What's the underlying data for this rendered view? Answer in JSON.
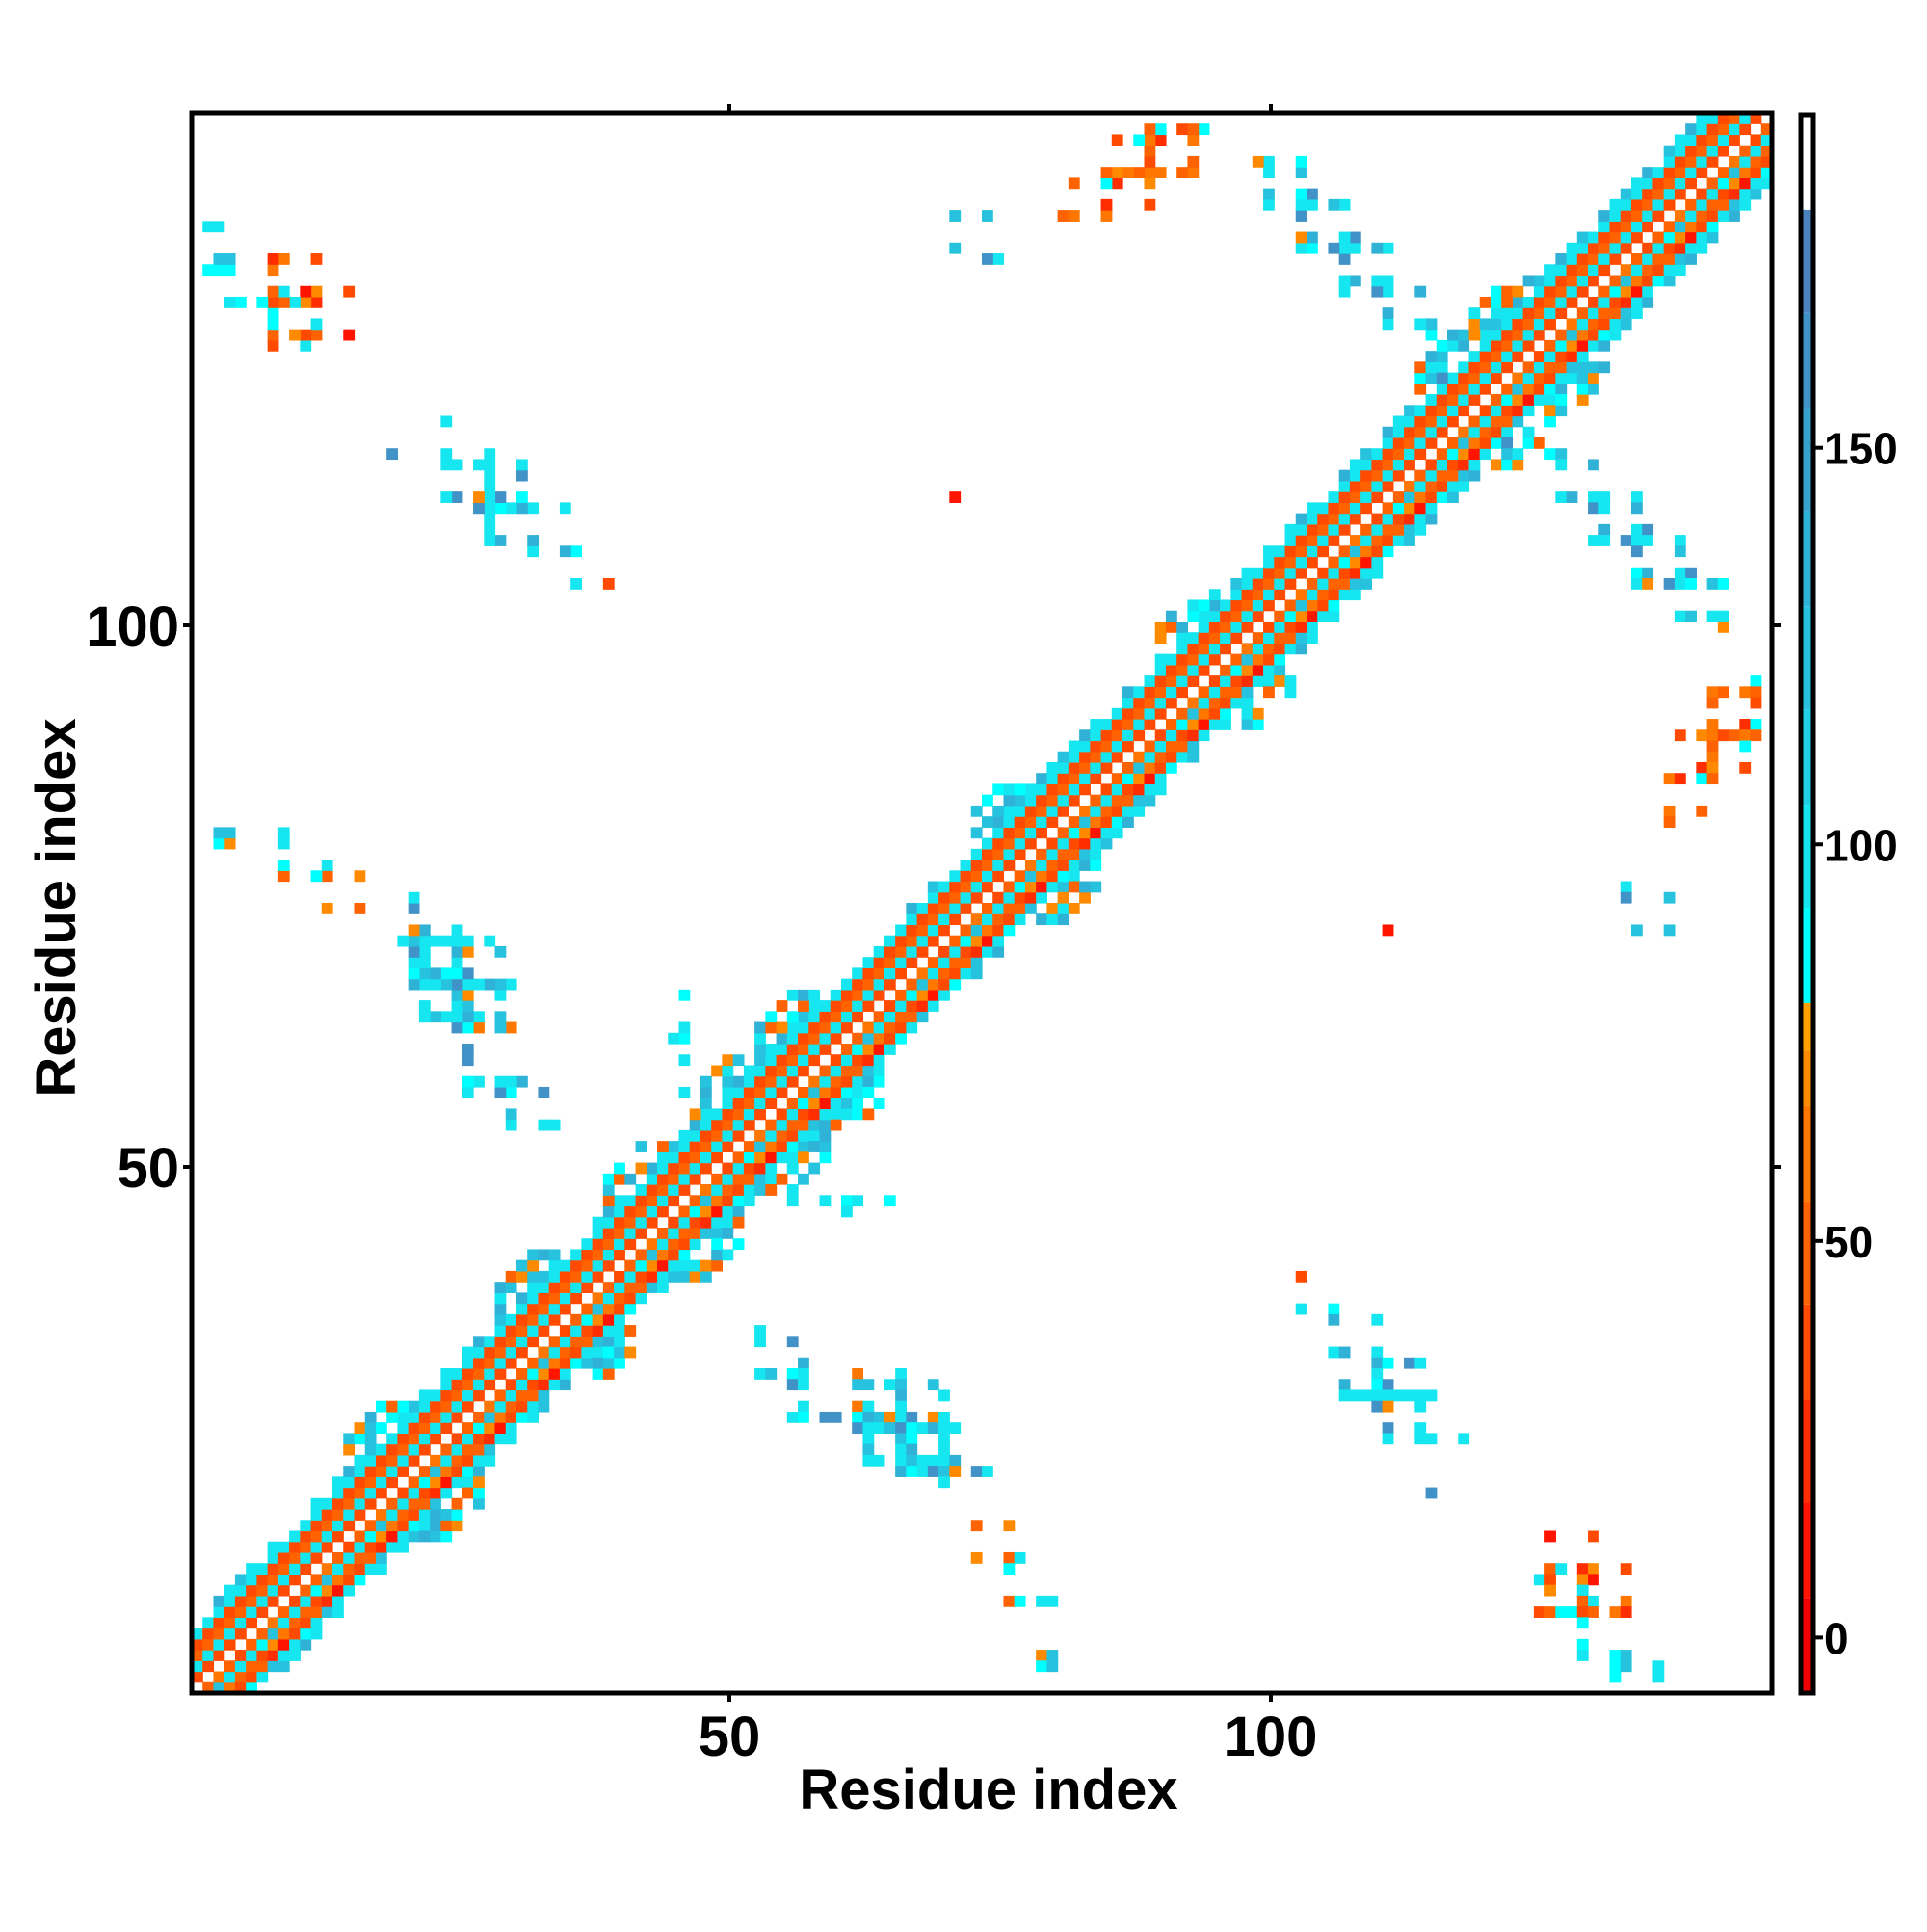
{
  "chart_data": {
    "type": "heatmap",
    "title": "",
    "xlabel": "Residue index",
    "ylabel": "Residue index",
    "n_residues": 146,
    "x_range": [
      0.5,
      146.5
    ],
    "y_range": [
      0.5,
      146.5
    ],
    "x_ticks": [
      50,
      100
    ],
    "y_ticks": [
      50,
      100
    ],
    "x_tick_labels": [
      "50",
      "100"
    ],
    "y_tick_labels": [
      "50",
      "100"
    ],
    "grid": false,
    "symmetric": true,
    "colorbar": {
      "position": "right",
      "range": [
        -7,
        192
      ],
      "ticks": [
        0,
        50,
        100,
        150
      ],
      "tick_labels": [
        "0",
        "50",
        "100",
        "150"
      ],
      "steps": [
        {
          "from": -7,
          "color": "#f00000"
        },
        {
          "from": 5,
          "color": "#ff1400"
        },
        {
          "from": 17,
          "color": "#ff2d00"
        },
        {
          "from": 30,
          "color": "#ff4a00"
        },
        {
          "from": 42,
          "color": "#ff6200"
        },
        {
          "from": 55,
          "color": "#ff7600"
        },
        {
          "from": 67,
          "color": "#ff8a00"
        },
        {
          "from": 74,
          "color": "#ffa200"
        },
        {
          "from": 80,
          "color": "#00ffff"
        },
        {
          "from": 92,
          "color": "#16e6f0"
        },
        {
          "from": 105,
          "color": "#1fd0e6"
        },
        {
          "from": 117,
          "color": "#27c2de"
        },
        {
          "from": 130,
          "color": "#30b2d6"
        },
        {
          "from": 142,
          "color": "#38a2ce"
        },
        {
          "from": 155,
          "color": "#4192c6"
        },
        {
          "from": 167,
          "color": "#4a82be"
        },
        {
          "from": 180,
          "color": "#ffffff"
        }
      ]
    },
    "band": {
      "max_offset": 6,
      "offset_values": [
        [],
        [
          45,
          35,
          60,
          45,
          50
        ],
        [
          100,
          88,
          100,
          120,
          100
        ],
        [
          45,
          60,
          35,
          45,
          72
        ],
        [
          20,
          35,
          5,
          45,
          30
        ],
        [
          100,
          120,
          88,
          100,
          100
        ],
        [
          100,
          140,
          100,
          120
        ]
      ],
      "junctions": [
        21,
        35,
        45,
        53,
        59,
        78,
        96,
        120,
        125
      ]
    },
    "contacts": [
      [
        73,
        16,
        45
      ],
      [
        76,
        16,
        72
      ],
      [
        73,
        13,
        72
      ],
      [
        76,
        13,
        45
      ],
      [
        77,
        13,
        100
      ],
      [
        76,
        12,
        88
      ],
      [
        76,
        9,
        45
      ],
      [
        77,
        9,
        88
      ],
      [
        79,
        9,
        100
      ],
      [
        80,
        9,
        100
      ],
      [
        79,
        4,
        72
      ],
      [
        80,
        4,
        120
      ],
      [
        79,
        3,
        88
      ],
      [
        80,
        3,
        120
      ],
      [
        126,
        15,
        5
      ],
      [
        130,
        15,
        35
      ],
      [
        126,
        12,
        45
      ],
      [
        127,
        12,
        100
      ],
      [
        129,
        12,
        20
      ],
      [
        130,
        12,
        72
      ],
      [
        133,
        12,
        35
      ],
      [
        125,
        11,
        100
      ],
      [
        126,
        11,
        35
      ],
      [
        129,
        11,
        72
      ],
      [
        130,
        11,
        5
      ],
      [
        126,
        10,
        72
      ],
      [
        129,
        10,
        100
      ],
      [
        129,
        9,
        45
      ],
      [
        130,
        9,
        100
      ],
      [
        133,
        9,
        60
      ],
      [
        125,
        8,
        35
      ],
      [
        126,
        8,
        45
      ],
      [
        127,
        8,
        88
      ],
      [
        128,
        8,
        88
      ],
      [
        129,
        8,
        35
      ],
      [
        130,
        8,
        45
      ],
      [
        132,
        8,
        60
      ],
      [
        133,
        8,
        20
      ],
      [
        129,
        7,
        88
      ],
      [
        129,
        5,
        88
      ],
      [
        129,
        4,
        100
      ],
      [
        132,
        4,
        88
      ],
      [
        133,
        4,
        120
      ],
      [
        132,
        3,
        88
      ],
      [
        133,
        3,
        120
      ],
      [
        136,
        3,
        100
      ],
      [
        132,
        2,
        88
      ],
      [
        136,
        2,
        100
      ],
      [
        103,
        39,
        35
      ],
      [
        103,
        36,
        100
      ],
      [
        106,
        36,
        88
      ],
      [
        106,
        35,
        140
      ],
      [
        110,
        35,
        100
      ],
      [
        106,
        32,
        100
      ],
      [
        107,
        32,
        140
      ],
      [
        110,
        32,
        100
      ],
      [
        110,
        31,
        140
      ],
      [
        111,
        31,
        88
      ],
      [
        113,
        31,
        165
      ],
      [
        114,
        31,
        100
      ],
      [
        110,
        30,
        100
      ],
      [
        107,
        29,
        140
      ],
      [
        110,
        29,
        88
      ],
      [
        111,
        29,
        165
      ],
      [
        107,
        28,
        100
      ],
      [
        108,
        28,
        100
      ],
      [
        109,
        28,
        100
      ],
      [
        110,
        28,
        100
      ],
      [
        111,
        28,
        100
      ],
      [
        112,
        28,
        100
      ],
      [
        113,
        28,
        100
      ],
      [
        114,
        28,
        100
      ],
      [
        115,
        28,
        100
      ],
      [
        110,
        27,
        165
      ],
      [
        111,
        27,
        72
      ],
      [
        114,
        27,
        100
      ],
      [
        111,
        25,
        165
      ],
      [
        114,
        25,
        100
      ],
      [
        111,
        24,
        100
      ],
      [
        114,
        24,
        100
      ],
      [
        115,
        24,
        100
      ],
      [
        118,
        24,
        100
      ],
      [
        115,
        19,
        165
      ],
      [
        111,
        71,
        5
      ],
      [
        122,
        117,
        100
      ],
      [
        122,
        116,
        165
      ],
      [
        122,
        115,
        120
      ],
      [
        123,
        115,
        100
      ],
      [
        126,
        115,
        88
      ],
      [
        127,
        115,
        120
      ],
      [
        122,
        114,
        88
      ],
      [
        127,
        114,
        100
      ],
      [
        130,
        114,
        140
      ],
      [
        127,
        111,
        100
      ],
      [
        128,
        111,
        140
      ],
      [
        130,
        111,
        100
      ],
      [
        131,
        111,
        100
      ],
      [
        134,
        111,
        100
      ],
      [
        130,
        110,
        165
      ],
      [
        131,
        110,
        100
      ],
      [
        134,
        110,
        140
      ],
      [
        131,
        108,
        140
      ],
      [
        134,
        108,
        100
      ],
      [
        135,
        108,
        165
      ],
      [
        130,
        107,
        100
      ],
      [
        131,
        107,
        100
      ],
      [
        133,
        107,
        165
      ],
      [
        134,
        107,
        100
      ],
      [
        135,
        107,
        100
      ],
      [
        138,
        107,
        100
      ],
      [
        134,
        106,
        165
      ],
      [
        138,
        106,
        120
      ],
      [
        134,
        104,
        88
      ],
      [
        135,
        104,
        140
      ],
      [
        138,
        104,
        100
      ],
      [
        139,
        104,
        165
      ],
      [
        134,
        103,
        100
      ],
      [
        135,
        103,
        72
      ],
      [
        137,
        103,
        165
      ],
      [
        138,
        103,
        100
      ],
      [
        139,
        103,
        88
      ],
      [
        141,
        103,
        120
      ],
      [
        142,
        103,
        88
      ],
      [
        138,
        100,
        100
      ],
      [
        139,
        100,
        120
      ],
      [
        141,
        100,
        100
      ],
      [
        142,
        100,
        100
      ],
      [
        142,
        99,
        72
      ],
      [
        145,
        94,
        88
      ],
      [
        141,
        93,
        60
      ],
      [
        142,
        93,
        45
      ],
      [
        144,
        93,
        60
      ],
      [
        145,
        93,
        45
      ],
      [
        141,
        92,
        45
      ],
      [
        145,
        92,
        35
      ],
      [
        141,
        90,
        60
      ],
      [
        144,
        90,
        20
      ],
      [
        145,
        90,
        88
      ],
      [
        138,
        89,
        35
      ],
      [
        140,
        89,
        72
      ],
      [
        141,
        89,
        60
      ],
      [
        142,
        89,
        35
      ],
      [
        143,
        89,
        45
      ],
      [
        144,
        89,
        60
      ],
      [
        145,
        89,
        45
      ],
      [
        141,
        88,
        45
      ],
      [
        144,
        88,
        88
      ],
      [
        141,
        87,
        60
      ],
      [
        140,
        86,
        20
      ],
      [
        141,
        86,
        72
      ],
      [
        144,
        86,
        35
      ],
      [
        137,
        85,
        60
      ],
      [
        138,
        85,
        20
      ],
      [
        140,
        85,
        88
      ],
      [
        141,
        85,
        45
      ],
      [
        137,
        82,
        60
      ],
      [
        140,
        82,
        45
      ],
      [
        137,
        81,
        45
      ],
      [
        133,
        75,
        100
      ],
      [
        133,
        74,
        165
      ],
      [
        137,
        74,
        120
      ],
      [
        134,
        71,
        120
      ],
      [
        137,
        71,
        120
      ],
      [
        53,
        34,
        100
      ],
      [
        53,
        33,
        100
      ],
      [
        56,
        33,
        165
      ],
      [
        57,
        31,
        140
      ],
      [
        53,
        30,
        100
      ],
      [
        54,
        30,
        120
      ],
      [
        56,
        30,
        88
      ],
      [
        57,
        30,
        100
      ],
      [
        62,
        30,
        60
      ],
      [
        66,
        30,
        100
      ],
      [
        56,
        29,
        165
      ],
      [
        57,
        29,
        100
      ],
      [
        62,
        29,
        120
      ],
      [
        63,
        29,
        120
      ],
      [
        65,
        29,
        100
      ],
      [
        66,
        29,
        120
      ],
      [
        69,
        29,
        120
      ],
      [
        66,
        28,
        140
      ],
      [
        70,
        28,
        100
      ],
      [
        57,
        27,
        100
      ],
      [
        62,
        27,
        60
      ],
      [
        63,
        27,
        100
      ],
      [
        66,
        27,
        100
      ],
      [
        56,
        26,
        100
      ],
      [
        57,
        26,
        88
      ],
      [
        59,
        26,
        165
      ],
      [
        60,
        26,
        165
      ],
      [
        62,
        26,
        88
      ],
      [
        63,
        26,
        140
      ],
      [
        64,
        26,
        120
      ],
      [
        65,
        26,
        72
      ],
      [
        66,
        26,
        100
      ],
      [
        67,
        26,
        165
      ],
      [
        69,
        26,
        72
      ],
      [
        70,
        26,
        100
      ],
      [
        62,
        25,
        165
      ],
      [
        63,
        25,
        100
      ],
      [
        64,
        25,
        100
      ],
      [
        65,
        25,
        120
      ],
      [
        66,
        25,
        165
      ],
      [
        67,
        25,
        88
      ],
      [
        68,
        25,
        100
      ],
      [
        69,
        25,
        140
      ],
      [
        70,
        25,
        100
      ],
      [
        71,
        25,
        100
      ],
      [
        63,
        24,
        100
      ],
      [
        66,
        24,
        120
      ],
      [
        67,
        24,
        88
      ],
      [
        70,
        24,
        100
      ],
      [
        63,
        23,
        120
      ],
      [
        66,
        23,
        100
      ],
      [
        67,
        23,
        140
      ],
      [
        70,
        23,
        100
      ],
      [
        63,
        22,
        100
      ],
      [
        64,
        22,
        100
      ],
      [
        66,
        22,
        100
      ],
      [
        67,
        22,
        120
      ],
      [
        68,
        22,
        100
      ],
      [
        69,
        22,
        100
      ],
      [
        70,
        22,
        100
      ],
      [
        71,
        22,
        140
      ],
      [
        66,
        21,
        140
      ],
      [
        67,
        21,
        88
      ],
      [
        68,
        21,
        100
      ],
      [
        69,
        21,
        165
      ],
      [
        70,
        21,
        120
      ],
      [
        71,
        21,
        72
      ],
      [
        73,
        21,
        165
      ],
      [
        74,
        21,
        100
      ],
      [
        70,
        20,
        100
      ],
      [
        56,
        46,
        100
      ],
      [
        59,
        46,
        100
      ],
      [
        61,
        46,
        88
      ],
      [
        62,
        46,
        100
      ],
      [
        65,
        46,
        88
      ],
      [
        61,
        45,
        100
      ]
    ]
  }
}
